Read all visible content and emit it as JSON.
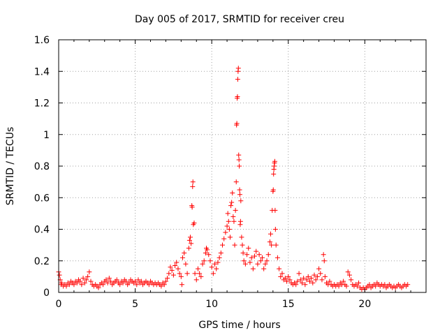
{
  "chart_data": {
    "type": "scatter",
    "title": "Day 005 of 2017, SRMTID for receiver creu",
    "xlabel": "GPS time / hours",
    "ylabel": "SRMTID / TECUs",
    "xlim": [
      0,
      24
    ],
    "ylim": [
      0,
      1.6
    ],
    "xticks": [
      0,
      5,
      10,
      15,
      20
    ],
    "xtick_labels": [
      "0",
      "5",
      "10",
      "15",
      "20"
    ],
    "yticks": [
      0,
      0.2,
      0.4,
      0.6,
      0.8,
      1.0,
      1.2,
      1.4,
      1.6
    ],
    "ytick_labels": [
      "0",
      "0.2",
      "0.4",
      "0.6",
      "0.8",
      "1",
      "1.2",
      "1.4",
      "1.6"
    ],
    "grid": true,
    "marker": "plus",
    "color": "#ff0000",
    "series": [
      {
        "points": [
          [
            0.0,
            0.13
          ],
          [
            0.05,
            0.11
          ],
          [
            0.1,
            0.08
          ],
          [
            0.15,
            0.05
          ],
          [
            0.2,
            0.06
          ],
          [
            0.3,
            0.04
          ],
          [
            0.4,
            0.05
          ],
          [
            0.5,
            0.04
          ],
          [
            0.6,
            0.06
          ],
          [
            0.7,
            0.05
          ],
          [
            0.8,
            0.07
          ],
          [
            0.9,
            0.06
          ],
          [
            1.0,
            0.05
          ],
          [
            1.1,
            0.07
          ],
          [
            1.2,
            0.06
          ],
          [
            1.3,
            0.08
          ],
          [
            1.4,
            0.07
          ],
          [
            1.5,
            0.05
          ],
          [
            1.6,
            0.09
          ],
          [
            1.7,
            0.06
          ],
          [
            1.8,
            0.08
          ],
          [
            1.9,
            0.1
          ],
          [
            2.0,
            0.13
          ],
          [
            2.1,
            0.07
          ],
          [
            2.2,
            0.05
          ],
          [
            2.3,
            0.04
          ],
          [
            2.4,
            0.05
          ],
          [
            2.5,
            0.04
          ],
          [
            2.6,
            0.03
          ],
          [
            2.7,
            0.05
          ],
          [
            2.8,
            0.06
          ],
          [
            2.9,
            0.05
          ],
          [
            3.0,
            0.07
          ],
          [
            3.1,
            0.08
          ],
          [
            3.2,
            0.06
          ],
          [
            3.3,
            0.09
          ],
          [
            3.4,
            0.07
          ],
          [
            3.5,
            0.05
          ],
          [
            3.6,
            0.06
          ],
          [
            3.7,
            0.07
          ],
          [
            3.8,
            0.08
          ],
          [
            3.9,
            0.06
          ],
          [
            4.0,
            0.05
          ],
          [
            4.1,
            0.07
          ],
          [
            4.2,
            0.06
          ],
          [
            4.3,
            0.08
          ],
          [
            4.4,
            0.07
          ],
          [
            4.5,
            0.05
          ],
          [
            4.6,
            0.06
          ],
          [
            4.7,
            0.08
          ],
          [
            4.8,
            0.07
          ],
          [
            4.9,
            0.06
          ],
          [
            5.0,
            0.07
          ],
          [
            5.1,
            0.05
          ],
          [
            5.2,
            0.08
          ],
          [
            5.3,
            0.06
          ],
          [
            5.4,
            0.07
          ],
          [
            5.5,
            0.05
          ],
          [
            5.6,
            0.06
          ],
          [
            5.7,
            0.07
          ],
          [
            5.8,
            0.06
          ],
          [
            5.9,
            0.05
          ],
          [
            6.0,
            0.07
          ],
          [
            6.1,
            0.06
          ],
          [
            6.2,
            0.05
          ],
          [
            6.3,
            0.06
          ],
          [
            6.4,
            0.05
          ],
          [
            6.5,
            0.06
          ],
          [
            6.6,
            0.05
          ],
          [
            6.7,
            0.04
          ],
          [
            6.8,
            0.06
          ],
          [
            6.9,
            0.05
          ],
          [
            7.0,
            0.07
          ],
          [
            7.1,
            0.09
          ],
          [
            7.2,
            0.12
          ],
          [
            7.3,
            0.16
          ],
          [
            7.4,
            0.14
          ],
          [
            7.5,
            0.11
          ],
          [
            7.6,
            0.17
          ],
          [
            7.7,
            0.19
          ],
          [
            7.8,
            0.15
          ],
          [
            7.9,
            0.12
          ],
          [
            8.0,
            0.1
          ],
          [
            8.05,
            0.05
          ],
          [
            8.1,
            0.22
          ],
          [
            8.2,
            0.25
          ],
          [
            8.3,
            0.18
          ],
          [
            8.4,
            0.12
          ],
          [
            8.5,
            0.28
          ],
          [
            8.55,
            0.33
          ],
          [
            8.6,
            0.35
          ],
          [
            8.65,
            0.31
          ],
          [
            8.7,
            0.55
          ],
          [
            8.72,
            0.54
          ],
          [
            8.75,
            0.67
          ],
          [
            8.77,
            0.7
          ],
          [
            8.8,
            0.43
          ],
          [
            8.85,
            0.44
          ],
          [
            8.9,
            0.12
          ],
          [
            9.0,
            0.08
          ],
          [
            9.1,
            0.15
          ],
          [
            9.2,
            0.12
          ],
          [
            9.3,
            0.1
          ],
          [
            9.4,
            0.18
          ],
          [
            9.5,
            0.2
          ],
          [
            9.6,
            0.25
          ],
          [
            9.65,
            0.28
          ],
          [
            9.7,
            0.27
          ],
          [
            9.8,
            0.24
          ],
          [
            9.9,
            0.2
          ],
          [
            10.0,
            0.16
          ],
          [
            10.1,
            0.12
          ],
          [
            10.2,
            0.18
          ],
          [
            10.3,
            0.15
          ],
          [
            10.4,
            0.19
          ],
          [
            10.5,
            0.22
          ],
          [
            10.6,
            0.25
          ],
          [
            10.7,
            0.3
          ],
          [
            10.8,
            0.34
          ],
          [
            10.9,
            0.38
          ],
          [
            11.0,
            0.42
          ],
          [
            11.05,
            0.5
          ],
          [
            11.1,
            0.45
          ],
          [
            11.15,
            0.4
          ],
          [
            11.2,
            0.35
          ],
          [
            11.25,
            0.55
          ],
          [
            11.3,
            0.57
          ],
          [
            11.35,
            0.63
          ],
          [
            11.4,
            0.48
          ],
          [
            11.45,
            0.45
          ],
          [
            11.5,
            0.3
          ],
          [
            11.55,
            0.52
          ],
          [
            11.6,
            0.7
          ],
          [
            11.62,
            1.06
          ],
          [
            11.64,
            1.07
          ],
          [
            11.66,
            1.23
          ],
          [
            11.68,
            1.24
          ],
          [
            11.7,
            1.35
          ],
          [
            11.72,
            1.4
          ],
          [
            11.74,
            1.42
          ],
          [
            11.76,
            0.87
          ],
          [
            11.78,
            0.84
          ],
          [
            11.8,
            0.8
          ],
          [
            11.82,
            0.65
          ],
          [
            11.84,
            0.62
          ],
          [
            11.86,
            0.43
          ],
          [
            11.88,
            0.45
          ],
          [
            11.9,
            0.58
          ],
          [
            11.95,
            0.35
          ],
          [
            12.0,
            0.3
          ],
          [
            12.05,
            0.25
          ],
          [
            12.1,
            0.2
          ],
          [
            12.2,
            0.18
          ],
          [
            12.3,
            0.24
          ],
          [
            12.4,
            0.28
          ],
          [
            12.5,
            0.19
          ],
          [
            12.6,
            0.22
          ],
          [
            12.7,
            0.15
          ],
          [
            12.8,
            0.23
          ],
          [
            12.9,
            0.26
          ],
          [
            13.0,
            0.18
          ],
          [
            13.1,
            0.24
          ],
          [
            13.2,
            0.2
          ],
          [
            13.3,
            0.22
          ],
          [
            13.4,
            0.15
          ],
          [
            13.5,
            0.18
          ],
          [
            13.6,
            0.2
          ],
          [
            13.7,
            0.24
          ],
          [
            13.8,
            0.32
          ],
          [
            13.85,
            0.37
          ],
          [
            13.9,
            0.3
          ],
          [
            13.95,
            0.52
          ],
          [
            14.0,
            0.64
          ],
          [
            14.02,
            0.65
          ],
          [
            14.04,
            0.75
          ],
          [
            14.06,
            0.78
          ],
          [
            14.08,
            0.8
          ],
          [
            14.1,
            0.82
          ],
          [
            14.12,
            0.83
          ],
          [
            14.14,
            0.52
          ],
          [
            14.16,
            0.4
          ],
          [
            14.2,
            0.3
          ],
          [
            14.3,
            0.22
          ],
          [
            14.4,
            0.15
          ],
          [
            14.5,
            0.1
          ],
          [
            14.6,
            0.12
          ],
          [
            14.7,
            0.08
          ],
          [
            14.8,
            0.09
          ],
          [
            14.9,
            0.07
          ],
          [
            15.0,
            0.1
          ],
          [
            15.1,
            0.08
          ],
          [
            15.2,
            0.06
          ],
          [
            15.3,
            0.05
          ],
          [
            15.4,
            0.06
          ],
          [
            15.5,
            0.05
          ],
          [
            15.6,
            0.07
          ],
          [
            15.7,
            0.12
          ],
          [
            15.8,
            0.08
          ],
          [
            15.9,
            0.06
          ],
          [
            16.0,
            0.09
          ],
          [
            16.1,
            0.05
          ],
          [
            16.2,
            0.08
          ],
          [
            16.3,
            0.1
          ],
          [
            16.4,
            0.07
          ],
          [
            16.5,
            0.09
          ],
          [
            16.6,
            0.06
          ],
          [
            16.7,
            0.11
          ],
          [
            16.8,
            0.08
          ],
          [
            16.9,
            0.1
          ],
          [
            17.0,
            0.15
          ],
          [
            17.1,
            0.12
          ],
          [
            17.2,
            0.08
          ],
          [
            17.3,
            0.24
          ],
          [
            17.35,
            0.2
          ],
          [
            17.4,
            0.1
          ],
          [
            17.5,
            0.06
          ],
          [
            17.6,
            0.05
          ],
          [
            17.7,
            0.07
          ],
          [
            17.8,
            0.05
          ],
          [
            17.9,
            0.04
          ],
          [
            18.0,
            0.05
          ],
          [
            18.1,
            0.04
          ],
          [
            18.2,
            0.05
          ],
          [
            18.3,
            0.04
          ],
          [
            18.4,
            0.06
          ],
          [
            18.5,
            0.05
          ],
          [
            18.6,
            0.07
          ],
          [
            18.7,
            0.05
          ],
          [
            18.8,
            0.04
          ],
          [
            18.9,
            0.13
          ],
          [
            19.0,
            0.11
          ],
          [
            19.1,
            0.08
          ],
          [
            19.2,
            0.05
          ],
          [
            19.3,
            0.04
          ],
          [
            19.4,
            0.05
          ],
          [
            19.5,
            0.04
          ],
          [
            19.6,
            0.06
          ],
          [
            19.7,
            0.03
          ],
          [
            19.8,
            0.02
          ],
          [
            19.9,
            0.03
          ],
          [
            20.0,
            0.02
          ],
          [
            20.1,
            0.03
          ],
          [
            20.2,
            0.04
          ],
          [
            20.3,
            0.05
          ],
          [
            20.4,
            0.03
          ],
          [
            20.5,
            0.04
          ],
          [
            20.6,
            0.05
          ],
          [
            20.7,
            0.04
          ],
          [
            20.8,
            0.06
          ],
          [
            20.9,
            0.05
          ],
          [
            21.0,
            0.04
          ],
          [
            21.1,
            0.05
          ],
          [
            21.2,
            0.04
          ],
          [
            21.3,
            0.05
          ],
          [
            21.4,
            0.03
          ],
          [
            21.5,
            0.04
          ],
          [
            21.6,
            0.05
          ],
          [
            21.7,
            0.04
          ],
          [
            21.8,
            0.03
          ],
          [
            21.9,
            0.04
          ],
          [
            22.0,
            0.03
          ],
          [
            22.1,
            0.04
          ],
          [
            22.2,
            0.05
          ],
          [
            22.3,
            0.04
          ],
          [
            22.4,
            0.03
          ],
          [
            22.5,
            0.04
          ],
          [
            22.6,
            0.05
          ],
          [
            22.7,
            0.04
          ],
          [
            22.8,
            0.05
          ]
        ]
      }
    ]
  }
}
